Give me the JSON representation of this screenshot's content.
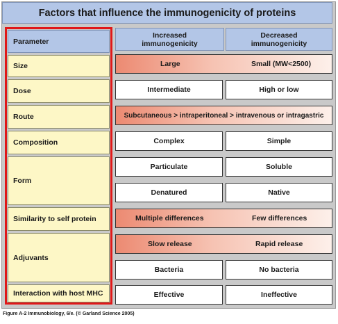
{
  "title": "Factors that influence the immunogenicity of proteins",
  "header": {
    "parameter": "Parameter",
    "increased": "Increased\nimmunogenicity",
    "decreased": "Decreased\nimmunogenicity"
  },
  "rows": {
    "size": {
      "label": "Size",
      "increased": "Large",
      "decreased": "Small (MW<2500)"
    },
    "dose": {
      "label": "Dose",
      "increased": "Intermediate",
      "decreased": "High or low"
    },
    "route": {
      "label": "Route",
      "text": "Subcutaneous > intraperitoneal > intravenous or intragastric"
    },
    "composition": {
      "label": "Composition",
      "increased": "Complex",
      "decreased": "Simple"
    },
    "form": {
      "label": "Form",
      "increased_1": "Particulate",
      "decreased_1": "Soluble",
      "increased_2": "Denatured",
      "decreased_2": "Native"
    },
    "similarity": {
      "label": "Similarity to self protein",
      "increased": "Multiple differences",
      "decreased": "Few differences"
    },
    "adjuvants": {
      "label": "Adjuvants",
      "increased_1": "Slow release",
      "decreased_1": "Rapid release",
      "increased_2": "Bacteria",
      "decreased_2": "No bacteria"
    },
    "mhc": {
      "label": "Interaction with host MHC",
      "increased": "Effective",
      "decreased": "Ineffective"
    }
  },
  "caption": "Figure A-2  Immunobiology, 6/e. (© Garland Science 2005)"
}
